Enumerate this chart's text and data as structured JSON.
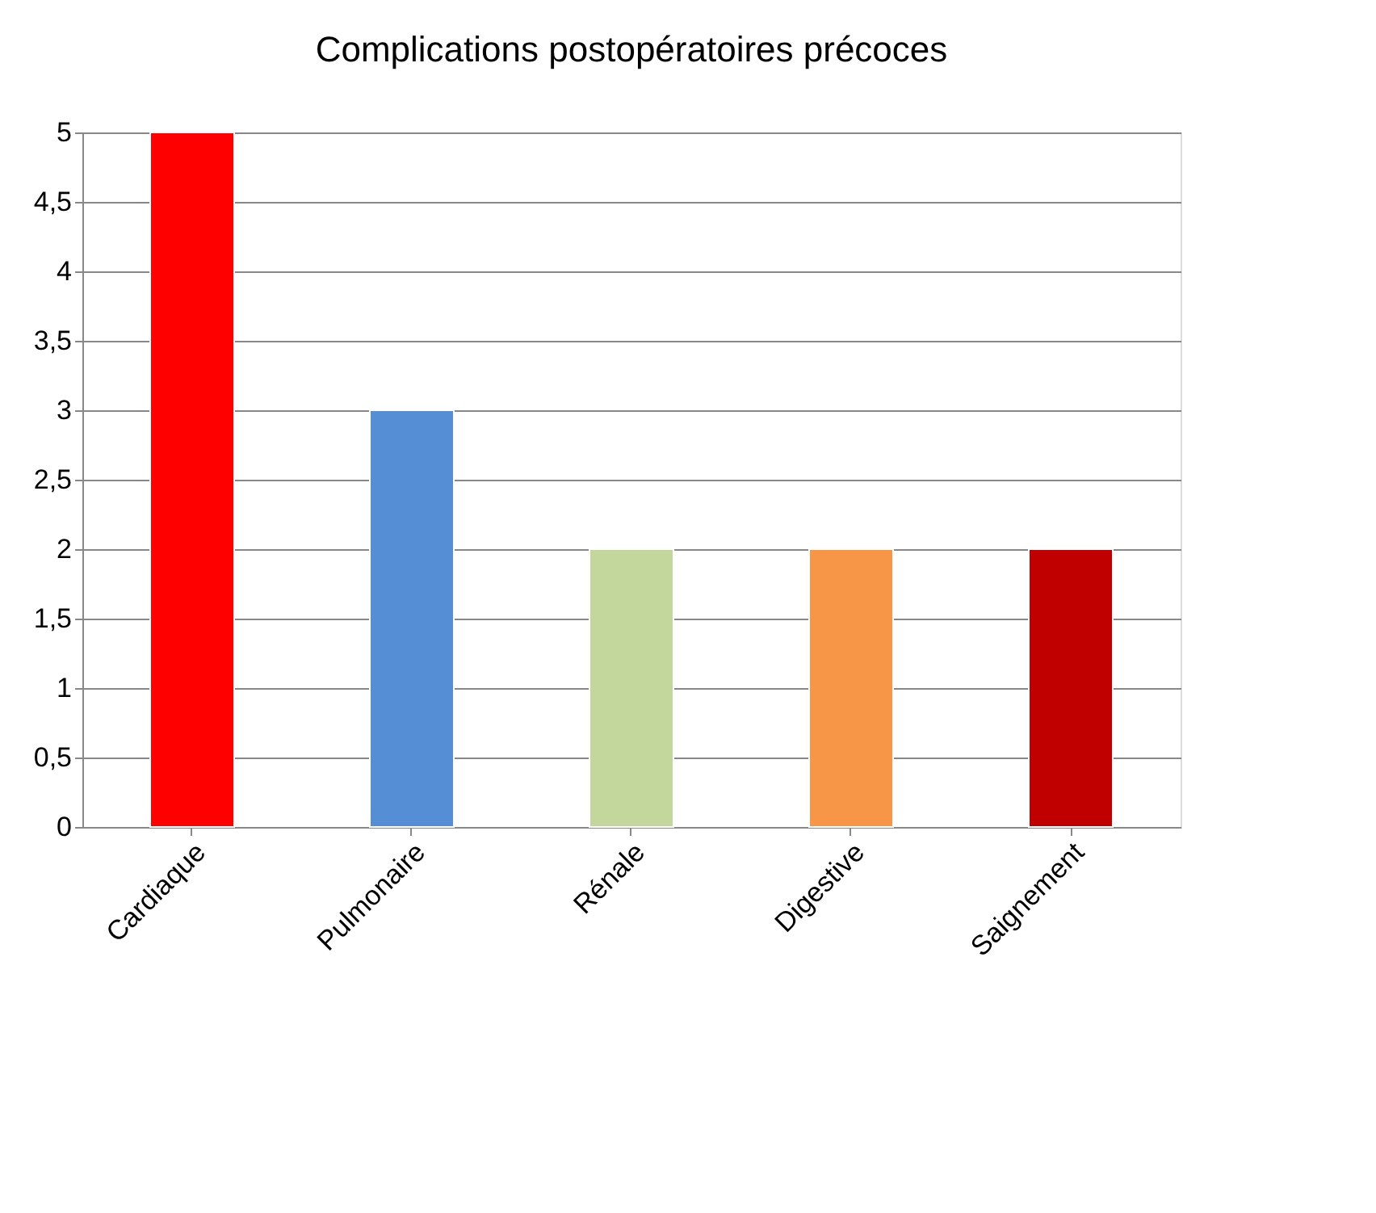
{
  "chart_data": {
    "type": "bar",
    "title": "Complications postopératoires précoces",
    "categories": [
      "Cardiaque",
      "Pulmonaire",
      "Rénale",
      "Digestive",
      "Saignement"
    ],
    "values": [
      5,
      3,
      2,
      2,
      2
    ],
    "colors": [
      "#ff0000",
      "#558ed5",
      "#c3d69b",
      "#f79646",
      "#c00000"
    ],
    "ylim": [
      0,
      5
    ],
    "yticks": [
      0,
      {
        "value": 0.5,
        "label": "0,5"
      },
      1,
      {
        "value": 1.5,
        "label": "1,5"
      },
      2,
      {
        "value": 2.5,
        "label": "2,5"
      },
      3,
      {
        "value": 3.5,
        "label": "3,5"
      },
      4,
      {
        "value": 4.5,
        "label": "4,5"
      },
      5
    ],
    "grid": "y",
    "legend": false
  }
}
